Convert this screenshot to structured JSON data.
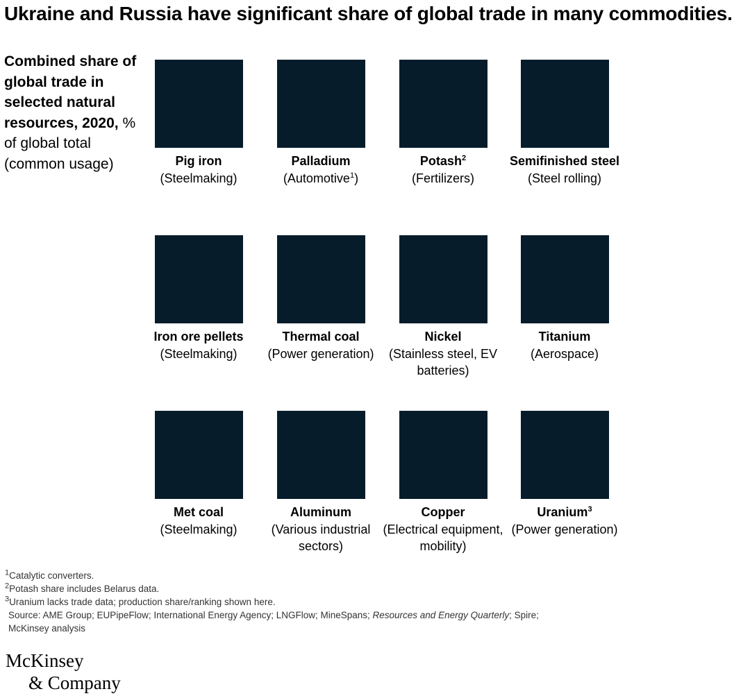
{
  "title": "Ukraine and Russia have significant share of global trade in many commodities.",
  "subtitle_bold": "Combined share of global trade in selected natural resources, 2020,",
  "subtitle_rest": "% of global total (common usage)",
  "colors": {
    "tile": "#061c2a"
  },
  "chart_data": {
    "type": "table",
    "title": "Ukraine and Russia have significant share of global trade in many commodities.",
    "subtitle": "Combined share of global trade in selected natural resources, 2020, % of global total (common usage)",
    "items": [
      {
        "name": "Pig iron",
        "sup": "",
        "usage": "(Steelmaking)"
      },
      {
        "name": "Palladium",
        "sup": "",
        "usage": "(Automotive",
        "usage_sup": "1",
        "usage_end": ")"
      },
      {
        "name": "Potash",
        "sup": "2",
        "usage": "(Fertilizers)"
      },
      {
        "name": "Semifinished steel",
        "sup": "",
        "usage": "(Steel rolling)"
      },
      {
        "name": "Iron ore pellets",
        "sup": "",
        "usage": "(Steelmaking)"
      },
      {
        "name": "Thermal coal",
        "sup": "",
        "usage": "(Power generation)"
      },
      {
        "name": "Nickel",
        "sup": "",
        "usage": "(Stainless steel, EV batteries)"
      },
      {
        "name": "Titanium",
        "sup": "",
        "usage": "(Aerospace)"
      },
      {
        "name": "Met coal",
        "sup": "",
        "usage": "(Steelmaking)"
      },
      {
        "name": "Aluminum",
        "sup": "",
        "usage": "(Various industrial sectors)"
      },
      {
        "name": "Copper",
        "sup": "",
        "usage": "(Electrical equipment, mobility)"
      },
      {
        "name": "Uranium",
        "sup": "3",
        "usage": "(Power generation)"
      }
    ]
  },
  "notes": {
    "n1_sup": "1",
    "n1": "Catalytic converters.",
    "n2_sup": "2",
    "n2": "Potash share includes Belarus data.",
    "n3_sup": "3",
    "n3": "Uranium lacks trade data; production share/ranking shown here.",
    "source_a": "Source: AME Group; EUPipeFlow; International Energy Agency; LNGFlow; MineSpans; ",
    "source_italic": "Resources and Energy Quarterly",
    "source_b": "; Spire;",
    "source_c": "McKinsey analysis"
  },
  "logo": {
    "line1": "McKinsey",
    "line2": "& Company"
  }
}
